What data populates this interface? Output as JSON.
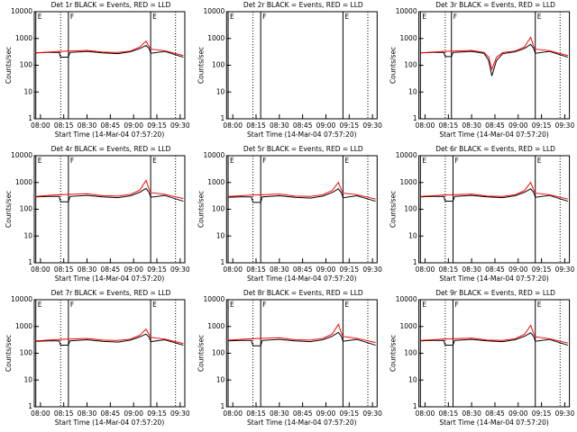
{
  "chart_data": [
    {
      "type": "line",
      "title": "Det 1r BLACK = Events, RED = LLD",
      "ylabel": "Counts/sec",
      "xlabel": "Start Time (14-Mar-04 07:57:20)",
      "log_y": true,
      "xlim": [
        -4,
        93
      ],
      "ylim": [
        1,
        10000
      ],
      "yticks": [
        1,
        10,
        100,
        1000,
        10000
      ],
      "xticks": [
        {
          "value": 0,
          "label": "08:00"
        },
        {
          "value": 15,
          "label": "08:15"
        },
        {
          "value": 30,
          "label": "08:30"
        },
        {
          "value": 45,
          "label": "08:45"
        },
        {
          "value": 60,
          "label": "09:00"
        },
        {
          "value": 75,
          "label": "09:15"
        },
        {
          "value": 90,
          "label": "09:30"
        }
      ],
      "annotations": [
        {
          "x": -3,
          "label": "E"
        },
        {
          "x": 18,
          "label": "F"
        },
        {
          "x": 71,
          "label": "E"
        }
      ],
      "dotted_lines": [
        13,
        87
      ],
      "x": [
        -3,
        5,
        12,
        13,
        18,
        19,
        30,
        40,
        50,
        58,
        64,
        68,
        70,
        71,
        80,
        92
      ],
      "series": [
        {
          "color": "#000000",
          "values": [
            290,
            300,
            300,
            200,
            200,
            300,
            330,
            290,
            270,
            320,
            420,
            550,
            420,
            280,
            330,
            200
          ]
        },
        {
          "color": "#ff0000",
          "values": [
            290,
            310,
            330,
            330,
            340,
            340,
            360,
            310,
            300,
            340,
            480,
            800,
            500,
            400,
            350,
            230
          ]
        }
      ]
    },
    {
      "type": "line",
      "title": "Det 2r BLACK = Events, RED = LLD",
      "ylabel": "Counts/sec",
      "xlabel": "Start Time (14-Mar-04 07:57:20)",
      "log_y": true,
      "xlim": [
        -4,
        93
      ],
      "ylim": [
        1,
        10000
      ],
      "yticks": [
        1,
        10,
        100,
        1000,
        10000
      ],
      "xticks": [
        {
          "value": 0,
          "label": "08:00"
        },
        {
          "value": 15,
          "label": "08:15"
        },
        {
          "value": 30,
          "label": "08:30"
        },
        {
          "value": 45,
          "label": "08:45"
        },
        {
          "value": 60,
          "label": "09:00"
        },
        {
          "value": 75,
          "label": "09:15"
        },
        {
          "value": 90,
          "label": "09:30"
        }
      ],
      "annotations": [
        {
          "x": -3,
          "label": "E"
        },
        {
          "x": 18,
          "label": "F"
        },
        {
          "x": 71,
          "label": "E"
        }
      ],
      "dotted_lines": [
        13,
        87
      ],
      "x": [],
      "series": []
    },
    {
      "type": "line",
      "title": "Det 3r BLACK = Events, RED = LLD",
      "ylabel": "Counts/sec",
      "xlabel": "Start Time (14-Mar-04 07:57:20)",
      "log_y": true,
      "xlim": [
        -4,
        93
      ],
      "ylim": [
        1,
        10000
      ],
      "yticks": [
        1,
        10,
        100,
        1000,
        10000
      ],
      "xticks": [
        {
          "value": 0,
          "label": "08:00"
        },
        {
          "value": 15,
          "label": "08:15"
        },
        {
          "value": 30,
          "label": "08:30"
        },
        {
          "value": 45,
          "label": "08:45"
        },
        {
          "value": 60,
          "label": "09:00"
        },
        {
          "value": 75,
          "label": "09:15"
        },
        {
          "value": 90,
          "label": "09:30"
        }
      ],
      "annotations": [
        {
          "x": -3,
          "label": "E"
        },
        {
          "x": 17,
          "label": "F"
        },
        {
          "x": 71,
          "label": "E"
        }
      ],
      "dotted_lines": [
        13,
        87
      ],
      "x": [
        -3,
        5,
        12,
        13,
        17,
        18,
        30,
        38,
        41,
        43,
        46,
        50,
        58,
        64,
        68,
        70,
        71,
        80,
        92
      ],
      "series": [
        {
          "color": "#000000",
          "values": [
            290,
            300,
            300,
            210,
            210,
            300,
            330,
            280,
            150,
            40,
            150,
            270,
            320,
            420,
            600,
            420,
            280,
            330,
            200
          ]
        },
        {
          "color": "#ff0000",
          "values": [
            290,
            310,
            330,
            330,
            340,
            340,
            360,
            300,
            200,
            70,
            200,
            300,
            340,
            480,
            1100,
            500,
            400,
            350,
            230
          ]
        }
      ]
    },
    {
      "type": "line",
      "title": "Det 4r BLACK = Events, RED = LLD",
      "ylabel": "Counts/sec",
      "xlabel": "Start Time (14-Mar-04 07:57:20)",
      "log_y": true,
      "xlim": [
        -4,
        93
      ],
      "ylim": [
        1,
        10000
      ],
      "yticks": [
        1,
        10,
        100,
        1000,
        10000
      ],
      "xticks": [
        {
          "value": 0,
          "label": "08:00"
        },
        {
          "value": 15,
          "label": "08:15"
        },
        {
          "value": 30,
          "label": "08:30"
        },
        {
          "value": 45,
          "label": "08:45"
        },
        {
          "value": 60,
          "label": "09:00"
        },
        {
          "value": 75,
          "label": "09:15"
        },
        {
          "value": 90,
          "label": "09:30"
        }
      ],
      "annotations": [
        {
          "x": -3,
          "label": "E"
        },
        {
          "x": 18,
          "label": "F"
        },
        {
          "x": 71,
          "label": "E"
        }
      ],
      "dotted_lines": [
        13,
        87
      ],
      "x": [
        -3,
        5,
        12,
        13,
        18,
        19,
        30,
        40,
        50,
        58,
        64,
        68,
        70,
        71,
        80,
        92
      ],
      "series": [
        {
          "color": "#000000",
          "values": [
            290,
            300,
            300,
            190,
            190,
            300,
            330,
            290,
            270,
            320,
            430,
            600,
            420,
            280,
            330,
            200
          ]
        },
        {
          "color": "#ff0000",
          "values": [
            300,
            330,
            350,
            350,
            360,
            360,
            380,
            320,
            310,
            360,
            520,
            1200,
            550,
            420,
            360,
            250
          ]
        }
      ]
    },
    {
      "type": "line",
      "title": "Det 5r BLACK = Events, RED = LLD",
      "ylabel": "Counts/sec",
      "xlabel": "Start Time (14-Mar-04 07:57:20)",
      "log_y": true,
      "xlim": [
        -4,
        93
      ],
      "ylim": [
        1,
        10000
      ],
      "yticks": [
        1,
        10,
        100,
        1000,
        10000
      ],
      "xticks": [
        {
          "value": 0,
          "label": "08:00"
        },
        {
          "value": 15,
          "label": "08:15"
        },
        {
          "value": 30,
          "label": "08:30"
        },
        {
          "value": 45,
          "label": "08:45"
        },
        {
          "value": 60,
          "label": "09:00"
        },
        {
          "value": 75,
          "label": "09:15"
        },
        {
          "value": 90,
          "label": "09:30"
        }
      ],
      "annotations": [
        {
          "x": -3,
          "label": "E"
        },
        {
          "x": 18,
          "label": "F"
        },
        {
          "x": 71,
          "label": "E"
        }
      ],
      "dotted_lines": [
        13,
        87
      ],
      "x": [
        -3,
        5,
        12,
        13,
        18,
        19,
        30,
        40,
        50,
        58,
        64,
        68,
        70,
        71,
        80,
        92
      ],
      "series": [
        {
          "color": "#000000",
          "values": [
            280,
            290,
            290,
            180,
            180,
            290,
            320,
            280,
            260,
            310,
            420,
            580,
            410,
            270,
            320,
            200
          ]
        },
        {
          "color": "#ff0000",
          "values": [
            300,
            320,
            340,
            340,
            350,
            350,
            370,
            310,
            300,
            350,
            500,
            1000,
            520,
            400,
            350,
            240
          ]
        }
      ]
    },
    {
      "type": "line",
      "title": "Det 6r BLACK = Events, RED = LLD",
      "ylabel": "Counts/sec",
      "xlabel": "Start Time (14-Mar-04 07:57:20)",
      "log_y": true,
      "xlim": [
        -4,
        93
      ],
      "ylim": [
        1,
        10000
      ],
      "yticks": [
        1,
        10,
        100,
        1000,
        10000
      ],
      "xticks": [
        {
          "value": 0,
          "label": "08:00"
        },
        {
          "value": 15,
          "label": "08:15"
        },
        {
          "value": 30,
          "label": "08:30"
        },
        {
          "value": 45,
          "label": "08:45"
        },
        {
          "value": 60,
          "label": "09:00"
        },
        {
          "value": 75,
          "label": "09:15"
        },
        {
          "value": 90,
          "label": "09:30"
        }
      ],
      "annotations": [
        {
          "x": -3,
          "label": "E"
        },
        {
          "x": 18,
          "label": "F"
        },
        {
          "x": 71,
          "label": "E"
        }
      ],
      "dotted_lines": [
        13,
        87
      ],
      "x": [
        -3,
        5,
        12,
        13,
        18,
        19,
        30,
        40,
        50,
        58,
        64,
        68,
        70,
        71,
        80,
        92
      ],
      "series": [
        {
          "color": "#000000",
          "values": [
            290,
            300,
            300,
            200,
            200,
            300,
            330,
            290,
            270,
            320,
            430,
            580,
            420,
            280,
            330,
            200
          ]
        },
        {
          "color": "#ff0000",
          "values": [
            300,
            320,
            340,
            340,
            350,
            350,
            370,
            310,
            300,
            350,
            500,
            1000,
            520,
            400,
            350,
            240
          ]
        }
      ]
    },
    {
      "type": "line",
      "title": "Det 7r BLACK = Events, RED = LLD",
      "ylabel": "Counts/sec",
      "xlabel": "Start Time (14-Mar-04 07:57:20)",
      "log_y": true,
      "xlim": [
        -4,
        93
      ],
      "ylim": [
        1,
        10000
      ],
      "yticks": [
        1,
        10,
        100,
        1000,
        10000
      ],
      "xticks": [
        {
          "value": 0,
          "label": "08:00"
        },
        {
          "value": 15,
          "label": "08:15"
        },
        {
          "value": 30,
          "label": "08:30"
        },
        {
          "value": 45,
          "label": "08:45"
        },
        {
          "value": 60,
          "label": "09:00"
        },
        {
          "value": 75,
          "label": "09:15"
        },
        {
          "value": 90,
          "label": "09:30"
        }
      ],
      "annotations": [
        {
          "x": -3,
          "label": "E"
        },
        {
          "x": 18,
          "label": "F"
        },
        {
          "x": 71,
          "label": "E"
        }
      ],
      "dotted_lines": [
        13,
        87
      ],
      "x": [
        -3,
        5,
        12,
        13,
        18,
        19,
        30,
        40,
        50,
        58,
        64,
        68,
        70,
        71,
        80,
        92
      ],
      "series": [
        {
          "color": "#000000",
          "values": [
            280,
            290,
            290,
            200,
            200,
            290,
            320,
            280,
            260,
            310,
            410,
            520,
            400,
            270,
            320,
            200
          ]
        },
        {
          "color": "#ff0000",
          "values": [
            290,
            310,
            330,
            330,
            340,
            340,
            360,
            310,
            300,
            340,
            470,
            800,
            500,
            390,
            340,
            230
          ]
        }
      ]
    },
    {
      "type": "line",
      "title": "Det 8r BLACK = Events, RED = LLD",
      "ylabel": "Counts/sec",
      "xlabel": "Start Time (14-Mar-04 07:57:20)",
      "log_y": true,
      "xlim": [
        -4,
        93
      ],
      "ylim": [
        1,
        10000
      ],
      "yticks": [
        1,
        10,
        100,
        1000,
        10000
      ],
      "xticks": [
        {
          "value": 0,
          "label": "08:00"
        },
        {
          "value": 15,
          "label": "08:15"
        },
        {
          "value": 30,
          "label": "08:30"
        },
        {
          "value": 45,
          "label": "08:45"
        },
        {
          "value": 60,
          "label": "09:00"
        },
        {
          "value": 75,
          "label": "09:15"
        },
        {
          "value": 90,
          "label": "09:30"
        }
      ],
      "annotations": [
        {
          "x": -3,
          "label": "E"
        },
        {
          "x": 18,
          "label": "F"
        },
        {
          "x": 71,
          "label": "E"
        }
      ],
      "dotted_lines": [
        13,
        87
      ],
      "x": [
        -3,
        5,
        12,
        13,
        18,
        19,
        30,
        40,
        50,
        58,
        64,
        68,
        70,
        71,
        80,
        92
      ],
      "series": [
        {
          "color": "#000000",
          "values": [
            290,
            300,
            300,
            190,
            190,
            300,
            330,
            290,
            270,
            320,
            430,
            600,
            420,
            280,
            330,
            200
          ]
        },
        {
          "color": "#ff0000",
          "values": [
            310,
            330,
            350,
            350,
            360,
            360,
            380,
            320,
            310,
            360,
            520,
            1200,
            560,
            420,
            360,
            250
          ]
        }
      ]
    },
    {
      "type": "line",
      "title": "Det 9r BLACK = Events, RED = LLD",
      "ylabel": "Counts/sec",
      "xlabel": "Start Time (14-Mar-04 07:57:20)",
      "log_y": true,
      "xlim": [
        -4,
        93
      ],
      "ylim": [
        1,
        10000
      ],
      "yticks": [
        1,
        10,
        100,
        1000,
        10000
      ],
      "xticks": [
        {
          "value": 0,
          "label": "08:00"
        },
        {
          "value": 15,
          "label": "08:15"
        },
        {
          "value": 30,
          "label": "08:30"
        },
        {
          "value": 45,
          "label": "08:45"
        },
        {
          "value": 60,
          "label": "09:00"
        },
        {
          "value": 75,
          "label": "09:15"
        },
        {
          "value": 90,
          "label": "09:30"
        }
      ],
      "annotations": [
        {
          "x": -3,
          "label": "E"
        },
        {
          "x": 18,
          "label": "F"
        },
        {
          "x": 71,
          "label": "E"
        }
      ],
      "dotted_lines": [
        13,
        87
      ],
      "x": [
        -3,
        5,
        12,
        13,
        18,
        19,
        30,
        40,
        50,
        58,
        64,
        68,
        70,
        71,
        80,
        92
      ],
      "series": [
        {
          "color": "#000000",
          "values": [
            290,
            300,
            300,
            200,
            200,
            300,
            330,
            290,
            270,
            320,
            430,
            580,
            420,
            280,
            330,
            200
          ]
        },
        {
          "color": "#ff0000",
          "values": [
            300,
            320,
            340,
            340,
            350,
            350,
            370,
            310,
            300,
            350,
            510,
            1100,
            530,
            410,
            350,
            240
          ]
        }
      ]
    }
  ]
}
